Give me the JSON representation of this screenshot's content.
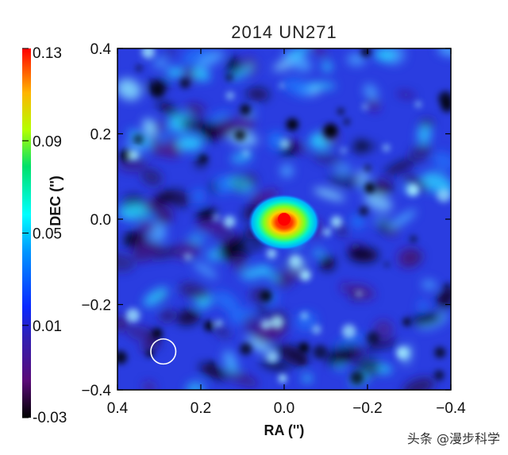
{
  "chart_data": {
    "type": "heatmap",
    "title": "2014 UN271",
    "xlabel": "RA ('')",
    "ylabel": "DEC ('')",
    "xlim": [
      0.4,
      -0.4
    ],
    "ylim": [
      -0.4,
      0.4
    ],
    "x_ticks": [
      "0.4",
      "0.2",
      "0.0",
      "−0.2",
      "−0.4"
    ],
    "x_tick_values": [
      0.4,
      0.2,
      0.0,
      -0.2,
      -0.4
    ],
    "y_ticks": [
      "0.4",
      "0.2",
      "0.0",
      "−0.2",
      "−0.4"
    ],
    "y_tick_values": [
      0.4,
      0.2,
      0.0,
      -0.2,
      -0.4
    ],
    "colorbar": {
      "range": [
        -0.03,
        0.13
      ],
      "ticks": [
        "0.13",
        "0.09",
        "0.05",
        "0.01",
        "-0.03"
      ],
      "tick_values": [
        0.13,
        0.09,
        0.05,
        0.01,
        -0.03
      ]
    },
    "source_peak": {
      "ra": 0.0,
      "dec": 0.0,
      "value": 0.13
    },
    "beam_marker": {
      "ra": 0.29,
      "dec": -0.31,
      "radius": 0.03
    },
    "colors": {
      "peak": "#ff0000",
      "background": "#2a3de0",
      "low": "#000000"
    }
  },
  "watermark": "头条 @漫步科学"
}
